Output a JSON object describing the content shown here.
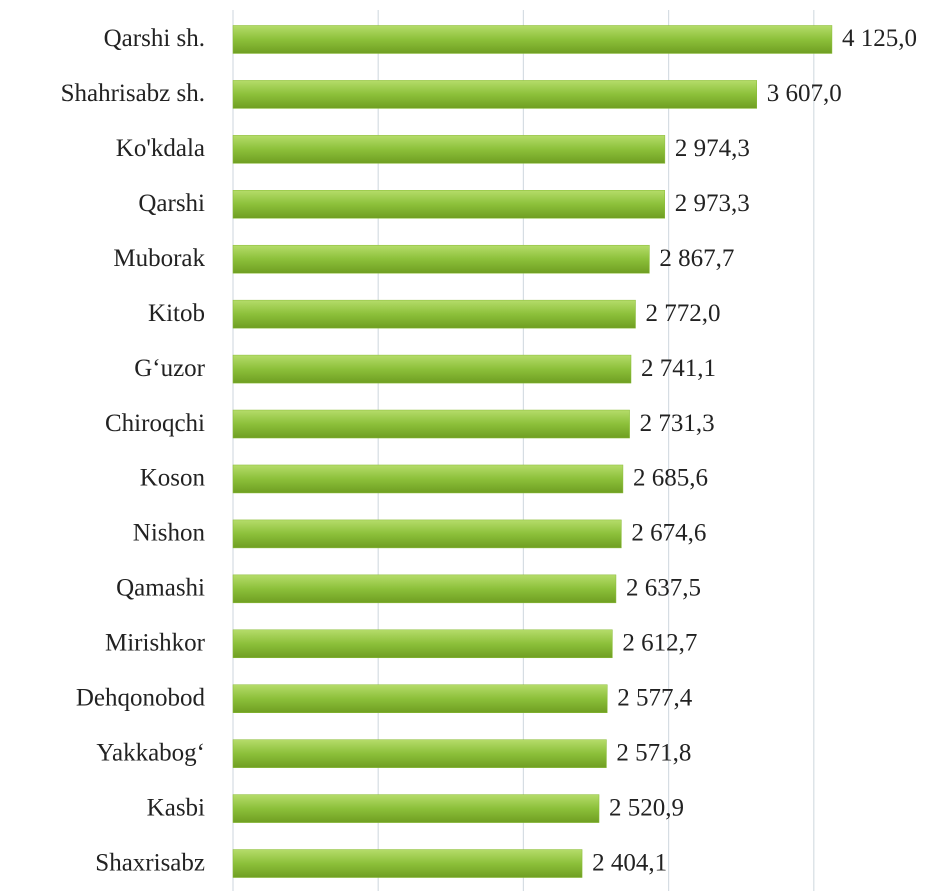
{
  "chart_data": {
    "type": "barh",
    "categories": [
      "Qarshi sh.",
      "Shahrisabz sh.",
      "Ko'kdala",
      "Qarshi",
      "Muborak",
      "Kitob",
      "G‘uzor",
      "Chiroqchi",
      "Koson",
      "Nishon",
      "Qamashi",
      "Mirishkor",
      "Dehqonobod",
      "Yakkabog‘",
      "Kasbi",
      "Shaxrisabz"
    ],
    "values": [
      4125.0,
      3607.0,
      2974.3,
      2973.3,
      2867.7,
      2772.0,
      2741.1,
      2731.3,
      2685.6,
      2674.6,
      2637.5,
      2612.7,
      2577.4,
      2571.8,
      2520.9,
      2404.1
    ],
    "value_labels": [
      "4 125,0",
      "3 607,0",
      "2 974,3",
      "2 973,3",
      "2 867,7",
      "2 772,0",
      "2 741,1",
      "2 731,3",
      "2 685,6",
      "2 674,6",
      "2 637,5",
      "2 612,7",
      "2 577,4",
      "2 571,8",
      "2 520,9",
      "2 404,1"
    ],
    "color": "#88bb35",
    "xlim": [
      0,
      5000
    ],
    "xticks": [
      0,
      1000,
      2000,
      3000,
      4000
    ],
    "grid": true
  }
}
